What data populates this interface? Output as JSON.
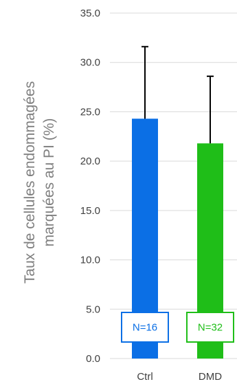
{
  "chart_data": {
    "type": "bar",
    "categories": [
      "Ctrl",
      "DMD"
    ],
    "values": [
      24.3,
      21.8
    ],
    "error_upper": [
      31.6,
      28.6
    ],
    "ylabel_line1": "Taux de cellules endommagées",
    "ylabel_line2": "marquées au PI (%)",
    "ylim": [
      0,
      35
    ],
    "yticks": [
      "0.0",
      "5.0",
      "10.0",
      "15.0",
      "20.0",
      "25.0",
      "30.0",
      "35.0"
    ],
    "grid": true,
    "annotations": [
      "N=16",
      "N=32"
    ],
    "colors": [
      "#0b6fe5",
      "#1fbe18"
    ],
    "gridline_color": "#d9d9d9"
  }
}
